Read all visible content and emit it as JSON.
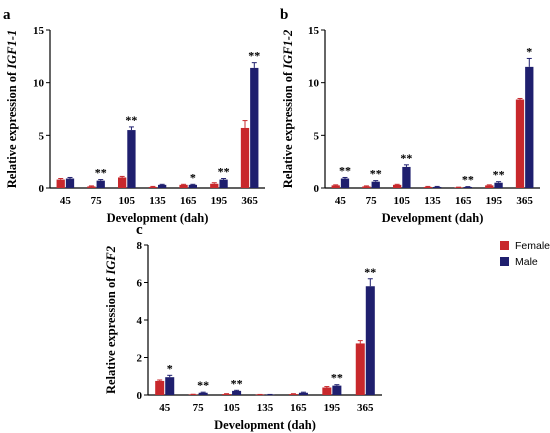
{
  "colors": {
    "female": "#c8282c",
    "male": "#1f1f6e",
    "axis": "#000000"
  },
  "legend": [
    {
      "name": "Female",
      "color": "#c8282c"
    },
    {
      "name": "Male",
      "color": "#1f1f6e"
    }
  ],
  "chart_data": [
    {
      "type": "bar",
      "panel": "a",
      "ylabel_prefix": "Relative expression of ",
      "ylabel_gene": "IGF1-1",
      "xlabel": "Development (dah)",
      "categories": [
        "45",
        "75",
        "105",
        "135",
        "165",
        "195",
        "365"
      ],
      "ylim": [
        0,
        15
      ],
      "yticks": [
        0,
        5,
        10,
        15
      ],
      "series": [
        {
          "name": "Female",
          "values": [
            0.8,
            0.15,
            1.0,
            0.1,
            0.3,
            0.4,
            5.7
          ],
          "errors": [
            0.1,
            0.05,
            0.1,
            0.05,
            0.05,
            0.1,
            0.7
          ]
        },
        {
          "name": "Male",
          "values": [
            0.9,
            0.7,
            5.5,
            0.3,
            0.3,
            0.8,
            11.4
          ],
          "errors": [
            0.1,
            0.1,
            0.3,
            0.05,
            0.05,
            0.1,
            0.5
          ]
        }
      ],
      "significance": [
        "",
        "**",
        "**",
        "",
        "*",
        "**",
        "**"
      ]
    },
    {
      "type": "bar",
      "panel": "b",
      "ylabel_prefix": "Relative expression of ",
      "ylabel_gene": "IGF1-2",
      "xlabel": "Development (dah)",
      "categories": [
        "45",
        "75",
        "105",
        "135",
        "165",
        "195",
        "365"
      ],
      "ylim": [
        0,
        15
      ],
      "yticks": [
        0,
        5,
        10,
        15
      ],
      "series": [
        {
          "name": "Female",
          "values": [
            0.25,
            0.15,
            0.3,
            0.1,
            0.05,
            0.25,
            8.4
          ],
          "errors": [
            0.05,
            0.05,
            0.05,
            0.05,
            0.03,
            0.05,
            0.1
          ]
        },
        {
          "name": "Male",
          "values": [
            0.9,
            0.6,
            2.0,
            0.1,
            0.1,
            0.5,
            11.5
          ],
          "errors": [
            0.1,
            0.1,
            0.2,
            0.05,
            0.03,
            0.1,
            0.8
          ]
        }
      ],
      "significance": [
        "**",
        "**",
        "**",
        "",
        "**",
        "**",
        "*"
      ]
    },
    {
      "type": "bar",
      "panel": "c",
      "ylabel_prefix": "Relative expression of ",
      "ylabel_gene": "IGF2",
      "xlabel": "Development (dah)",
      "categories": [
        "45",
        "75",
        "105",
        "135",
        "165",
        "195",
        "365"
      ],
      "ylim": [
        0,
        8
      ],
      "yticks": [
        0,
        2,
        4,
        6,
        8
      ],
      "series": [
        {
          "name": "Female",
          "values": [
            0.75,
            0.03,
            0.05,
            0.02,
            0.05,
            0.4,
            2.75
          ],
          "errors": [
            0.05,
            0.01,
            0.02,
            0.01,
            0.02,
            0.05,
            0.15
          ]
        },
        {
          "name": "Male",
          "values": [
            0.95,
            0.12,
            0.22,
            0.02,
            0.12,
            0.5,
            5.8
          ],
          "errors": [
            0.1,
            0.03,
            0.03,
            0.01,
            0.03,
            0.05,
            0.4
          ]
        }
      ],
      "significance": [
        "*",
        "**",
        "**",
        "",
        "",
        "**",
        "**"
      ]
    }
  ]
}
